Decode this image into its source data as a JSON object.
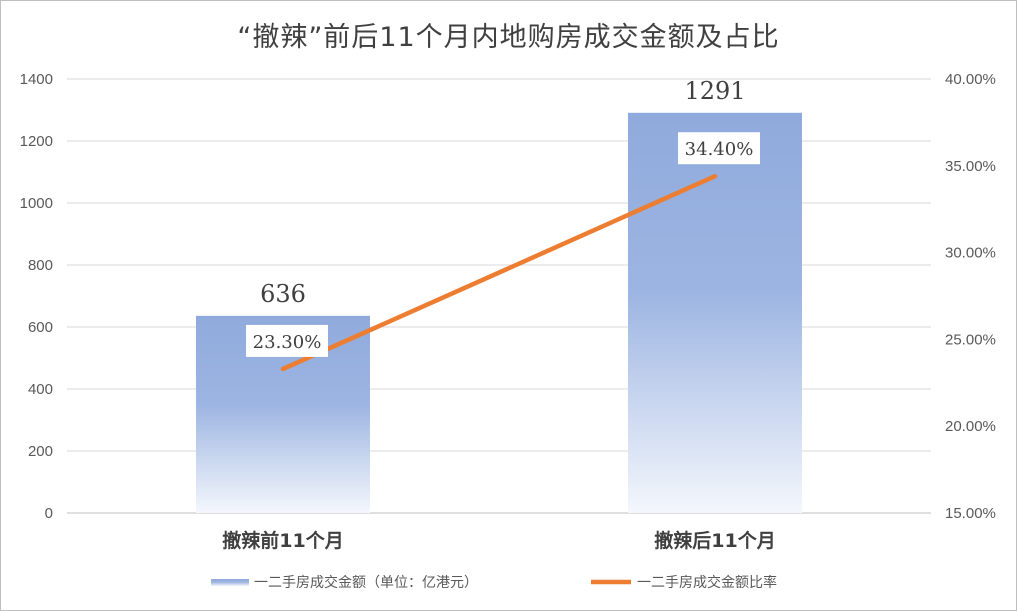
{
  "chart_data": {
    "type": "bar",
    "title": "“撤辣”前后11个月内地购房成交金额及占比",
    "categories": [
      "撤辣前11个月",
      "撤辣后11个月"
    ],
    "series": [
      {
        "name": "一二手房成交金额（单位：亿港元）",
        "type": "bar",
        "axis": "left",
        "values": [
          636,
          1291
        ],
        "labels": [
          "636",
          "1291"
        ],
        "color": "#8faadc"
      },
      {
        "name": "一二手房成交金额比率",
        "type": "line",
        "axis": "right",
        "values": [
          0.233,
          0.344
        ],
        "labels": [
          "23.30%",
          "34.40%"
        ],
        "color": "#ed7d31"
      }
    ],
    "y_left": {
      "min": 0,
      "max": 1400,
      "ticks": [
        "0",
        "200",
        "400",
        "600",
        "800",
        "1000",
        "1200",
        "1400"
      ]
    },
    "y_right": {
      "min": 0.15,
      "max": 0.4,
      "ticks": [
        "15.00%",
        "20.00%",
        "25.00%",
        "30.00%",
        "35.00%",
        "40.00%"
      ]
    },
    "grid": true,
    "legend": "bottom"
  }
}
